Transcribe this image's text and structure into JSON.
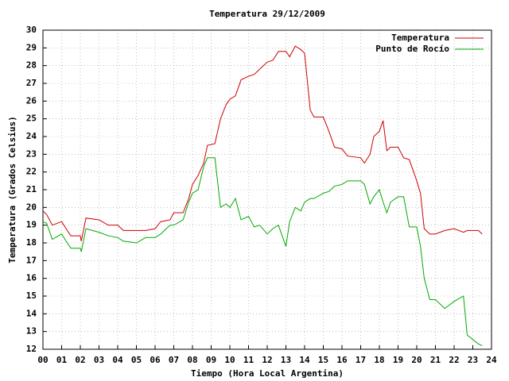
{
  "chart_data": {
    "type": "line",
    "title": "Temperatura 29/12/2009",
    "x_label": "Tiempo (Hora Local Argentina)",
    "y_label": "Temperatura (Grados Celsius)",
    "x": [
      0,
      0.2,
      0.5,
      1.0,
      1.3,
      1.5,
      2.0,
      2.05,
      2.3,
      3.0,
      3.5,
      4.0,
      4.3,
      5.0,
      5.5,
      6.0,
      6.3,
      6.8,
      7.0,
      7.5,
      7.8,
      8.0,
      8.3,
      8.6,
      8.8,
      9.2,
      9.5,
      9.8,
      10.0,
      10.3,
      10.6,
      11.0,
      11.3,
      11.6,
      12.0,
      12.3,
      12.6,
      13.0,
      13.2,
      13.5,
      13.8,
      14.0,
      14.3,
      14.5,
      15.0,
      15.3,
      15.6,
      16.0,
      16.3,
      17.0,
      17.2,
      17.5,
      17.7,
      18.0,
      18.2,
      18.4,
      18.6,
      19.0,
      19.3,
      19.6,
      20.0,
      20.2,
      20.4,
      20.7,
      21.0,
      21.5,
      22.0,
      22.5,
      22.7,
      23.3,
      23.5
    ],
    "series": [
      {
        "name": "Temperatura",
        "color": "#cc0000",
        "values": [
          19.8,
          19.6,
          19.0,
          19.2,
          18.7,
          18.4,
          18.4,
          18.1,
          19.4,
          19.3,
          19.0,
          19.0,
          18.7,
          18.7,
          18.7,
          18.8,
          19.2,
          19.3,
          19.7,
          19.7,
          20.5,
          21.3,
          21.8,
          22.5,
          23.5,
          23.6,
          25.0,
          25.8,
          26.1,
          26.3,
          27.2,
          27.4,
          27.5,
          27.8,
          28.2,
          28.3,
          28.8,
          28.8,
          28.5,
          29.1,
          28.9,
          28.7,
          25.5,
          25.1,
          25.1,
          24.3,
          23.4,
          23.3,
          22.9,
          22.8,
          22.5,
          23.0,
          24.0,
          24.3,
          24.9,
          23.2,
          23.4,
          23.4,
          22.8,
          22.7,
          21.5,
          20.8,
          18.8,
          18.5,
          18.5,
          18.7,
          18.8,
          18.6,
          18.7,
          18.7,
          18.5
        ]
      },
      {
        "name": "Punto de Rocío",
        "color": "#00aa00",
        "values": [
          19.2,
          19.1,
          18.2,
          18.5,
          18.0,
          17.7,
          17.7,
          17.5,
          18.8,
          18.6,
          18.4,
          18.3,
          18.1,
          18.0,
          18.3,
          18.3,
          18.5,
          19.0,
          19.0,
          19.3,
          20.3,
          20.8,
          21.0,
          22.3,
          22.8,
          22.8,
          20.0,
          20.2,
          20.0,
          20.5,
          19.3,
          19.5,
          18.9,
          19.0,
          18.5,
          18.8,
          19.0,
          17.8,
          19.2,
          20.0,
          19.8,
          20.3,
          20.5,
          20.5,
          20.8,
          20.9,
          21.2,
          21.3,
          21.5,
          21.5,
          21.3,
          20.2,
          20.6,
          21.0,
          20.3,
          19.7,
          20.3,
          20.6,
          20.6,
          18.9,
          18.9,
          17.8,
          16.0,
          14.8,
          14.8,
          14.3,
          14.7,
          15.0,
          12.8,
          12.3,
          12.2
        ]
      }
    ],
    "xlim": [
      0,
      24
    ],
    "xticks": [
      {
        "value": 0,
        "label": "00"
      },
      {
        "value": 1,
        "label": "01"
      },
      {
        "value": 2,
        "label": "02"
      },
      {
        "value": 3,
        "label": "03"
      },
      {
        "value": 4,
        "label": "04"
      },
      {
        "value": 5,
        "label": "05"
      },
      {
        "value": 6,
        "label": "06"
      },
      {
        "value": 7,
        "label": "07"
      },
      {
        "value": 8,
        "label": "08"
      },
      {
        "value": 9,
        "label": "09"
      },
      10,
      11,
      12,
      13,
      14,
      15,
      16,
      17,
      18,
      19,
      20,
      21,
      22,
      23,
      24
    ],
    "ylim": [
      12,
      30
    ],
    "yticks": [
      12,
      13,
      14,
      15,
      16,
      17,
      18,
      19,
      20,
      21,
      22,
      23,
      24,
      25,
      26,
      27,
      28,
      29,
      30
    ],
    "grid": true,
    "legend": "top-right"
  }
}
